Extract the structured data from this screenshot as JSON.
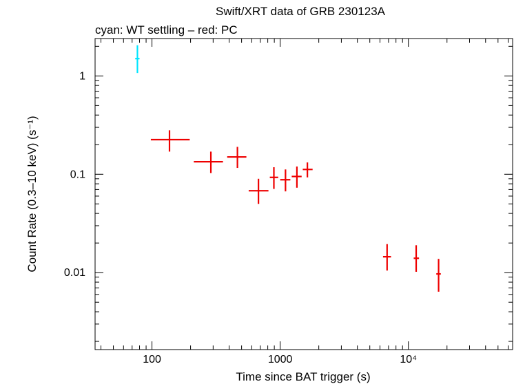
{
  "chart_data": {
    "type": "scatter",
    "title": "Swift/XRT data of GRB 230123A",
    "subtitle": "cyan: WT settling – red: PC",
    "xlabel": "Time since BAT trigger (s)",
    "ylabel": "Count Rate (0.3–10 keV) (s⁻¹)",
    "xscale": "log",
    "yscale": "log",
    "xlim": [
      36,
      65000
    ],
    "ylim": [
      0.00165,
      2.4
    ],
    "x_ticks": [
      {
        "value": 100,
        "label": "100"
      },
      {
        "value": 1000,
        "label": "1000"
      },
      {
        "value": 10000,
        "label": "10⁴"
      }
    ],
    "y_ticks": [
      {
        "value": 0.01,
        "label": "0.01"
      },
      {
        "value": 0.1,
        "label": "0.1"
      },
      {
        "value": 1,
        "label": "1"
      }
    ],
    "series": [
      {
        "name": "WT settling",
        "color": "#00e5ff",
        "points": [
          {
            "x": 77,
            "xlo": 74,
            "xhi": 80,
            "y": 1.5,
            "ylo": 1.07,
            "yhi": 2.05
          }
        ]
      },
      {
        "name": "PC",
        "color": "#ee0000",
        "points": [
          {
            "x": 137,
            "xlo": 98,
            "xhi": 197,
            "y": 0.225,
            "ylo": 0.17,
            "yhi": 0.28
          },
          {
            "x": 288,
            "xlo": 212,
            "xhi": 358,
            "y": 0.134,
            "ylo": 0.103,
            "yhi": 0.17
          },
          {
            "x": 464,
            "xlo": 386,
            "xhi": 545,
            "y": 0.15,
            "ylo": 0.116,
            "yhi": 0.19
          },
          {
            "x": 677,
            "xlo": 568,
            "xhi": 810,
            "y": 0.068,
            "ylo": 0.05,
            "yhi": 0.09
          },
          {
            "x": 893,
            "xlo": 830,
            "xhi": 965,
            "y": 0.093,
            "ylo": 0.071,
            "yhi": 0.118
          },
          {
            "x": 1100,
            "xlo": 1000,
            "xhi": 1200,
            "y": 0.088,
            "ylo": 0.067,
            "yhi": 0.112
          },
          {
            "x": 1350,
            "xlo": 1230,
            "xhi": 1470,
            "y": 0.095,
            "ylo": 0.073,
            "yhi": 0.12
          },
          {
            "x": 1630,
            "xlo": 1500,
            "xhi": 1790,
            "y": 0.112,
            "ylo": 0.093,
            "yhi": 0.132
          },
          {
            "x": 6820,
            "xlo": 6340,
            "xhi": 7320,
            "y": 0.0145,
            "ylo": 0.0105,
            "yhi": 0.0195
          },
          {
            "x": 11500,
            "xlo": 11000,
            "xhi": 12100,
            "y": 0.014,
            "ylo": 0.0102,
            "yhi": 0.019
          },
          {
            "x": 17200,
            "xlo": 16500,
            "xhi": 17900,
            "y": 0.0097,
            "ylo": 0.0064,
            "yhi": 0.0138
          }
        ]
      }
    ]
  }
}
